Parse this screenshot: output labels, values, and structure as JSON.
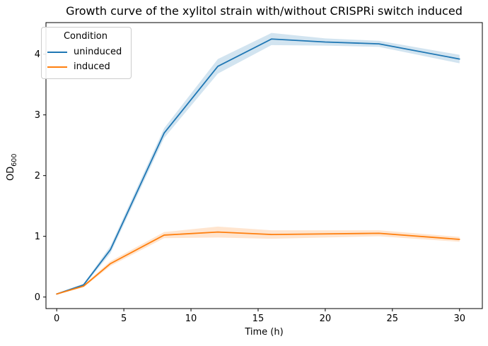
{
  "title": "Growth curve of the xylitol strain with/without CRISPRi switch induced",
  "axes": {
    "xlabel": "Time (h)",
    "ylabel_main": "OD",
    "ylabel_sub": "600",
    "x_ticks": [
      0,
      5,
      10,
      15,
      20,
      25,
      30
    ],
    "y_ticks": [
      0,
      1,
      2,
      3,
      4
    ]
  },
  "legend": {
    "title": "Condition",
    "entries": [
      {
        "label": "uninduced",
        "color": "#1f77b4"
      },
      {
        "label": "induced",
        "color": "#ff7f0e"
      }
    ]
  },
  "colors": {
    "uninduced": "#1f77b4",
    "induced": "#ff7f0e",
    "spine": "#000000",
    "band_opacity": 0.2
  },
  "chart_data": {
    "type": "line",
    "title": "Growth curve of the xylitol strain with/without CRISPRi switch induced",
    "xlabel": "Time (h)",
    "ylabel": "OD600",
    "x": [
      0,
      2,
      4,
      8,
      12,
      16,
      20,
      24,
      30
    ],
    "series": [
      {
        "name": "uninduced",
        "color": "#1f77b4",
        "values": [
          0.05,
          0.2,
          0.78,
          2.7,
          3.8,
          4.25,
          4.2,
          4.17,
          3.92
        ],
        "error": [
          0.01,
          0.02,
          0.06,
          0.08,
          0.12,
          0.1,
          0.06,
          0.05,
          0.07
        ]
      },
      {
        "name": "induced",
        "color": "#ff7f0e",
        "values": [
          0.05,
          0.18,
          0.55,
          1.02,
          1.07,
          1.03,
          1.04,
          1.05,
          0.95
        ],
        "error": [
          0.01,
          0.02,
          0.04,
          0.05,
          0.09,
          0.07,
          0.06,
          0.05,
          0.04
        ]
      }
    ],
    "xlim": [
      -0.8,
      31.7
    ],
    "ylim": [
      -0.19,
      4.52
    ],
    "grid": false,
    "legend_position": "upper left",
    "legend_title": "Condition",
    "band": "shaded error band (mean ± sd)"
  }
}
